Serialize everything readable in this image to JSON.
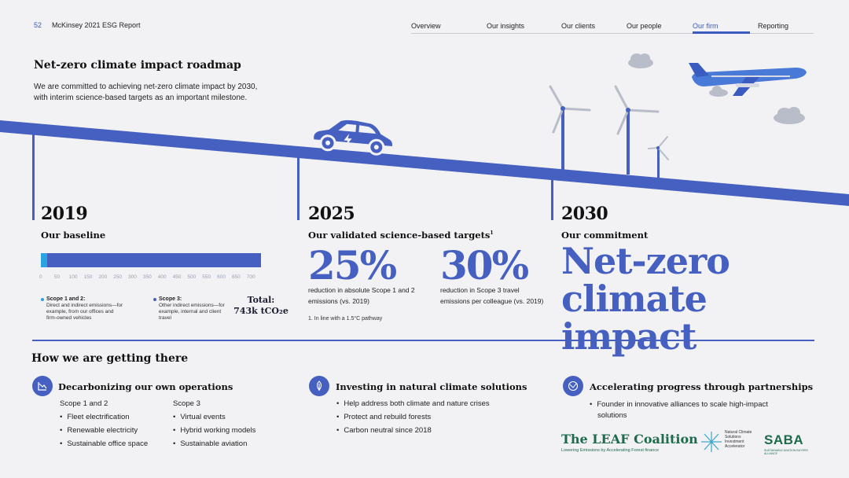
{
  "header": {
    "page_number": "52",
    "report_title": "McKinsey 2021 ESG Report",
    "nav": [
      {
        "label": "Overview"
      },
      {
        "label": "Our insights"
      },
      {
        "label": "Our clients"
      },
      {
        "label": "Our people"
      },
      {
        "label": "Our firm",
        "active": true
      },
      {
        "label": "Reporting"
      }
    ]
  },
  "hero": {
    "title": "Net-zero climate impact roadmap",
    "description": "We are committed to achieving net-zero climate impact by 2030, with interim science-based targets as an important milestone."
  },
  "milestones": {
    "m2019": {
      "year": "2019",
      "subtitle": "Our baseline",
      "bar": {
        "ticks": [
          "0",
          "50",
          "100",
          "150",
          "200",
          "250",
          "300",
          "350",
          "400",
          "450",
          "500",
          "550",
          "600",
          "650",
          "700"
        ],
        "scope12_value": 20,
        "total_value": 743,
        "axis_max": 743
      },
      "legend": {
        "scope12_title": "Scope 1 and 2:",
        "scope12_text": "Direct and indirect emissions—for example, from our offices and firm-owned vehicles",
        "scope3_title": "Scope 3:",
        "scope3_text": "Other indirect emissions—for example, internal and client travel"
      },
      "total_label": "Total:",
      "total_value": "743k tCO₂e"
    },
    "m2025": {
      "year": "2025",
      "subtitle": "Our validated science-based targets",
      "footnote_mark": "1",
      "target1_pct": "25%",
      "target1_desc": "reduction in absolute Scope 1 and 2 emissions (vs. 2019)",
      "target2_pct": "30%",
      "target2_desc": "reduction in Scope 3 travel emissions per colleague (vs. 2019)",
      "footnote": "1. In line with a 1.5°C pathway"
    },
    "m2030": {
      "year": "2030",
      "subtitle": "Our commitment",
      "headline_line1": "Net-zero",
      "headline_line2": "climate impact"
    }
  },
  "how": {
    "title": "How we are getting there",
    "col1": {
      "icon": "descending-chart-icon",
      "title": "Decarbonizing our own operations",
      "scope12_head": "Scope 1 and 2",
      "scope12_items": [
        "Fleet electrification",
        "Renewable electricity",
        "Sustainable office space"
      ],
      "scope3_head": "Scope 3",
      "scope3_items": [
        "Virtual events",
        "Hybrid working models",
        "Sustainable aviation"
      ]
    },
    "col2": {
      "icon": "leaf-icon",
      "title": "Investing in natural climate solutions",
      "items": [
        "Help address both climate and nature crises",
        "Protect and rebuild forests",
        "Carbon neutral since 2018"
      ]
    },
    "col3": {
      "icon": "globe-network-icon",
      "title": "Accelerating progress through partnerships",
      "items": [
        "Founder in innovative alliances to scale high-impact solutions"
      ]
    }
  },
  "logos": {
    "leaf_title": "The LEAF Coalition",
    "leaf_sub": "Lowering Emissions by Accelerating Forest finance",
    "ncs_text": "Natural Climate Solutions Investment Accelerator",
    "saba_title": "SABA",
    "saba_sub": "SUSTAINABLE AVIATION BUYERS ALLIANCE"
  },
  "colors": {
    "accent": "#4560c0",
    "scope12": "#2aa3e0",
    "logo_green": "#1d6b4c"
  }
}
